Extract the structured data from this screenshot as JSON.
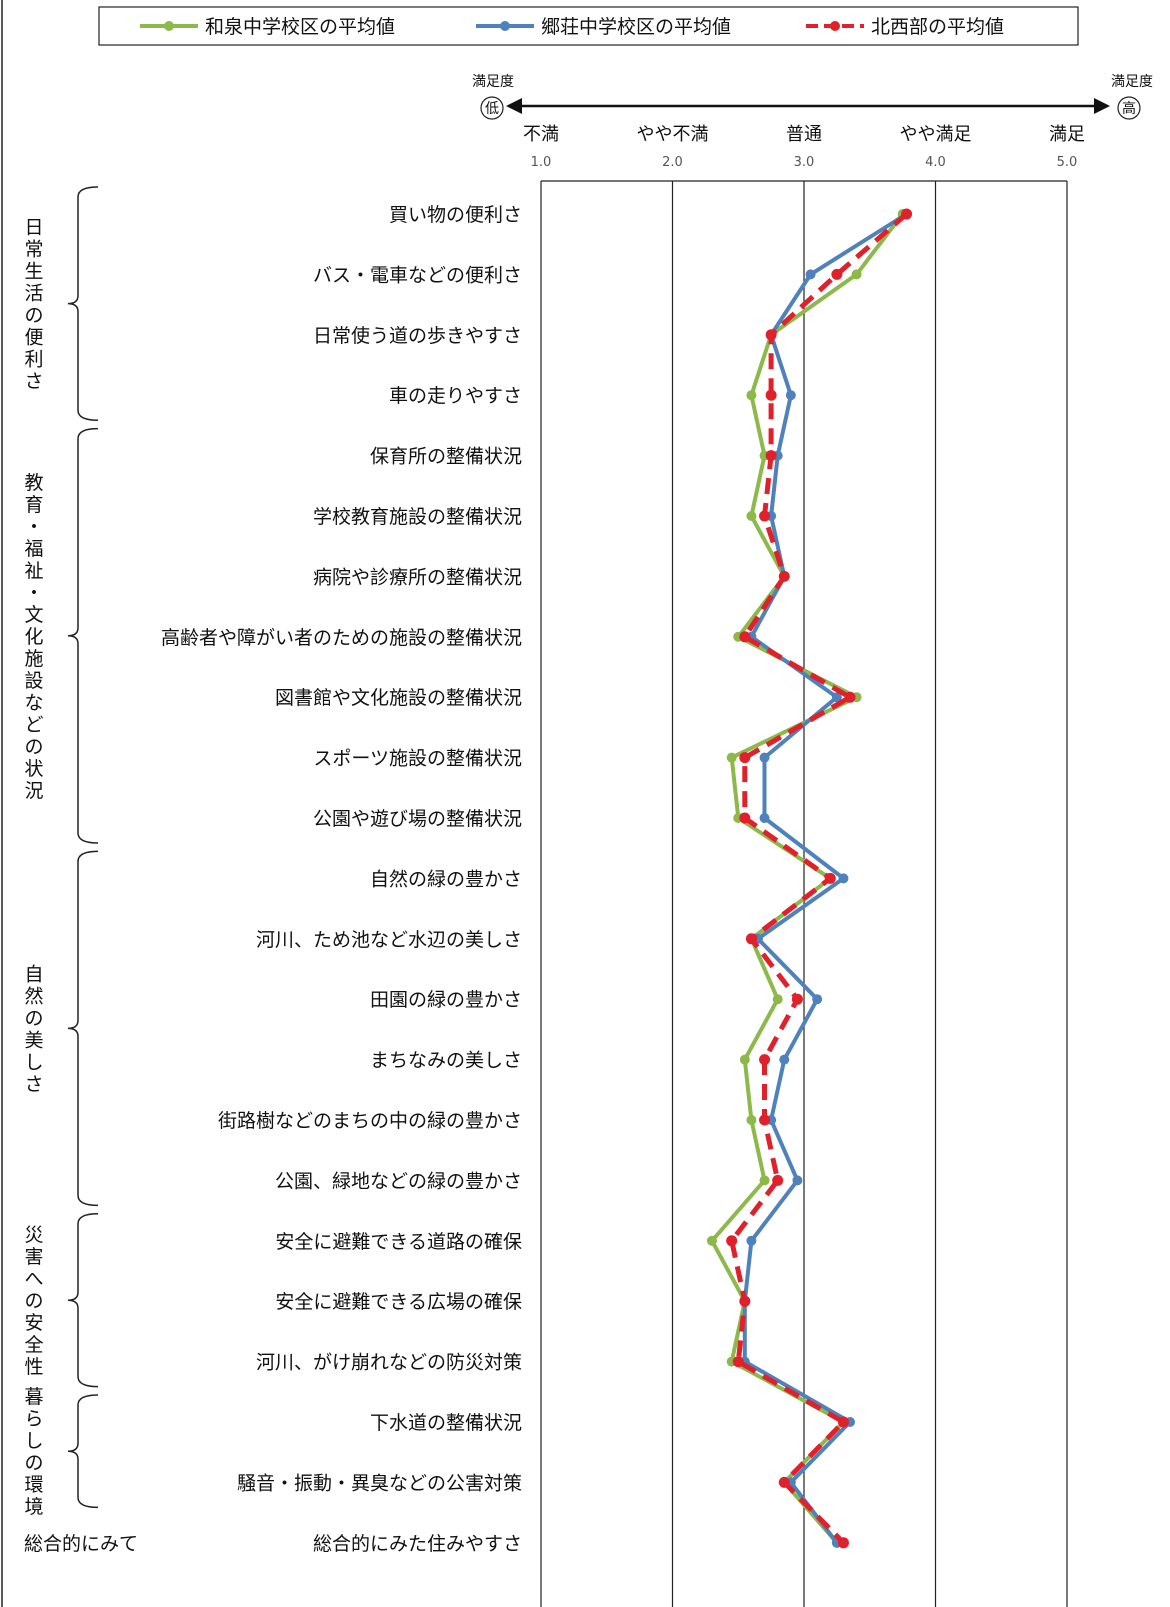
{
  "chart_data": {
    "type": "line",
    "orientation": "horizontal-profile",
    "x_range": [
      1.0,
      5.0
    ],
    "axis": {
      "left_caption": "満足度",
      "right_caption": "満足度",
      "low_badge": "低",
      "high_badge": "高"
    },
    "scale_labels": [
      "不満",
      "やや不満",
      "普通",
      "やや満足",
      "満足"
    ],
    "tick_labels": [
      "1.0",
      "2.0",
      "3.0",
      "4.0",
      "5.0"
    ],
    "tick_values": [
      1,
      2,
      3,
      4,
      5
    ],
    "grid": true,
    "legend_position": "top",
    "categories": [
      "買い物の便利さ",
      "バス・電車などの便利さ",
      "日常使う道の歩きやすさ",
      "車の走りやすさ",
      "保育所の整備状況",
      "学校教育施設の整備状況",
      "病院や診療所の整備状況",
      "高齢者や障がい者のための施設の整備状況",
      "図書館や文化施設の整備状況",
      "スポーツ施設の整備状況",
      "公園や遊び場の整備状況",
      "自然の緑の豊かさ",
      "河川、ため池など水辺の美しさ",
      "田園の緑の豊かさ",
      "まちなみの美しさ",
      "街路樹などのまちの中の緑の豊かさ",
      "公園、緑地などの緑の豊かさ",
      "安全に避難できる道路の確保",
      "安全に避難できる広場の確保",
      "河川、がけ崩れなどの防災対策",
      "下水道の整備状況",
      "騒音・振動・異臭などの公害対策",
      "総合的にみた住みやすさ"
    ],
    "groups": [
      {
        "label": "日常生活の便利さ",
        "first": 0,
        "last": 3,
        "bracket": true
      },
      {
        "label": "教育・福祉・文化施設などの状況",
        "first": 4,
        "last": 10,
        "bracket": true
      },
      {
        "label": "自然の美しさ",
        "first": 11,
        "last": 16,
        "bracket": true
      },
      {
        "label": "災害への安全性",
        "first": 17,
        "last": 19,
        "bracket": true
      },
      {
        "label": "暮らしの環境",
        "first": 20,
        "last": 21,
        "bracket": true
      },
      {
        "label": "総合的にみて",
        "first": 22,
        "last": 22,
        "bracket": false
      }
    ],
    "series": [
      {
        "name": "和泉中学校区の平均値",
        "color": "#8DB84A",
        "dashed": false,
        "values": [
          3.75,
          3.4,
          2.75,
          2.6,
          2.7,
          2.6,
          2.85,
          2.5,
          3.4,
          2.45,
          2.5,
          3.2,
          2.6,
          2.8,
          2.55,
          2.6,
          2.7,
          2.3,
          2.55,
          2.45,
          3.3,
          2.85,
          3.25
        ]
      },
      {
        "name": "郷荘中学校区の平均値",
        "color": "#4F81BD",
        "dashed": false,
        "values": [
          3.78,
          3.05,
          2.75,
          2.9,
          2.8,
          2.75,
          2.85,
          2.6,
          3.25,
          2.7,
          2.7,
          3.3,
          2.65,
          3.1,
          2.85,
          2.75,
          2.95,
          2.6,
          2.55,
          2.55,
          3.35,
          2.9,
          3.25
        ]
      },
      {
        "name": "北西部の平均値",
        "color": "#E0202A",
        "dashed": true,
        "values": [
          3.78,
          3.25,
          2.75,
          2.75,
          2.75,
          2.7,
          2.85,
          2.55,
          3.35,
          2.55,
          2.55,
          3.2,
          2.6,
          2.95,
          2.7,
          2.7,
          2.8,
          2.45,
          2.55,
          2.5,
          3.3,
          2.85,
          3.3
        ]
      }
    ]
  }
}
